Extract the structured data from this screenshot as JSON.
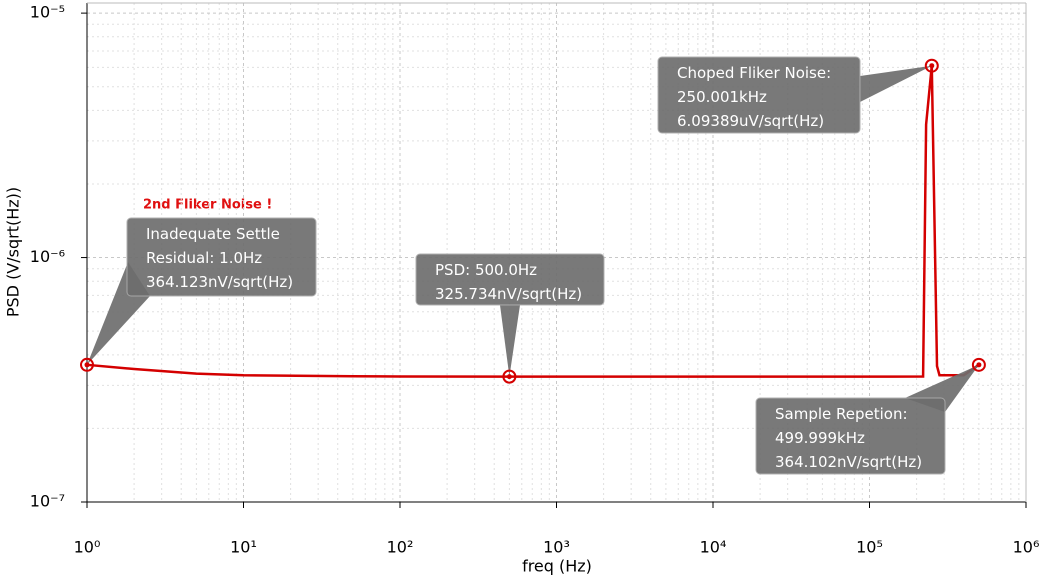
{
  "chart_data": {
    "type": "line",
    "log_x": true,
    "log_y": true,
    "grid": true,
    "minor_grid": true,
    "x_label": "freq (Hz)",
    "y_label": "PSD (V/sqrt(Hz))",
    "xlim": [
      1,
      1000000
    ],
    "ylim": [
      1e-07,
      1.1e-05
    ],
    "xticks": [
      {
        "value": 1,
        "label": "10⁰"
      },
      {
        "value": 10,
        "label": "10¹"
      },
      {
        "value": 100,
        "label": "10²"
      },
      {
        "value": 1000,
        "label": "10³"
      },
      {
        "value": 10000,
        "label": "10⁴"
      },
      {
        "value": 100000,
        "label": "10⁵"
      },
      {
        "value": 1000000,
        "label": "10⁶"
      }
    ],
    "yticks": [
      {
        "value": 1e-07,
        "label": "10⁻⁷"
      },
      {
        "value": 1e-06,
        "label": "10⁻⁶"
      },
      {
        "value": 1e-05,
        "label": "10⁻⁵"
      }
    ],
    "series": [
      {
        "color": "#d40000",
        "x": [
          1,
          2,
          5,
          10,
          50,
          100,
          500,
          1000,
          10000,
          100000,
          220000,
          230000,
          250001,
          270000,
          280000,
          400000,
          499999
        ],
        "values": [
          3.64123e-07,
          3.5e-07,
          3.35e-07,
          3.3e-07,
          3.27e-07,
          3.26e-07,
          3.25734e-07,
          3.257e-07,
          3.257e-07,
          3.257e-07,
          3.26e-07,
          3.5e-06,
          6.09389e-06,
          3.6e-07,
          3.3e-07,
          3.3e-07,
          3.64102e-07
        ]
      }
    ],
    "note": "2nd Fliker Noise !",
    "annotations": [
      {
        "lines": [
          "Inadequate Settle",
          "Residual: 1.0Hz",
          "364.123nV/sqrt(Hz)"
        ],
        "x": 1,
        "y": 3.64123e-07
      },
      {
        "lines": [
          "PSD: 500.0Hz",
          "325.734nV/sqrt(Hz)"
        ],
        "x": 500,
        "y": 3.25734e-07
      },
      {
        "lines": [
          "Choped Fliker Noise:",
          "250.001kHz",
          "6.09389uV/sqrt(Hz)"
        ],
        "x": 250001,
        "y": 6.09389e-06
      },
      {
        "lines": [
          "Sample Repetion:",
          "499.999kHz",
          "364.102nV/sqrt(Hz)"
        ],
        "x": 499999,
        "y": 3.64102e-07
      }
    ]
  }
}
